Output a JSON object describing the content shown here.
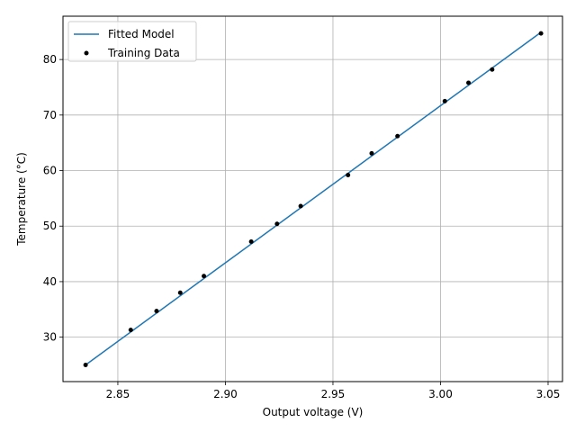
{
  "chart_data": {
    "type": "line",
    "title": "",
    "xlabel": "Output voltage (V)",
    "ylabel": "Temperature (°C)",
    "xlim": [
      2.8245,
      3.0567
    ],
    "ylim": [
      22.0,
      87.8
    ],
    "xticks": [
      2.85,
      2.9,
      2.95,
      3.0,
      3.05
    ],
    "xtick_labels": [
      "2.85",
      "2.90",
      "2.95",
      "3.00",
      "3.05"
    ],
    "yticks": [
      30,
      40,
      50,
      60,
      70,
      80
    ],
    "ytick_labels": [
      "30",
      "40",
      "50",
      "60",
      "70",
      "80"
    ],
    "grid": true,
    "legend_position": "upper-left",
    "series": [
      {
        "name": "Fitted Model",
        "kind": "line",
        "color": "#1f77b4",
        "x": [
          2.835,
          3.0467
        ],
        "y": [
          25.0,
          84.9
        ]
      },
      {
        "name": "Training Data",
        "kind": "scatter",
        "color": "#000000",
        "x": [
          2.835,
          2.856,
          2.868,
          2.879,
          2.89,
          2.912,
          2.924,
          2.935,
          2.957,
          2.968,
          2.98,
          3.002,
          3.013,
          3.024,
          3.0467
        ],
        "y": [
          25.0,
          31.3,
          34.7,
          38.0,
          41.0,
          47.2,
          50.4,
          53.6,
          59.2,
          63.1,
          66.2,
          72.5,
          75.8,
          78.2,
          84.7
        ]
      }
    ]
  }
}
